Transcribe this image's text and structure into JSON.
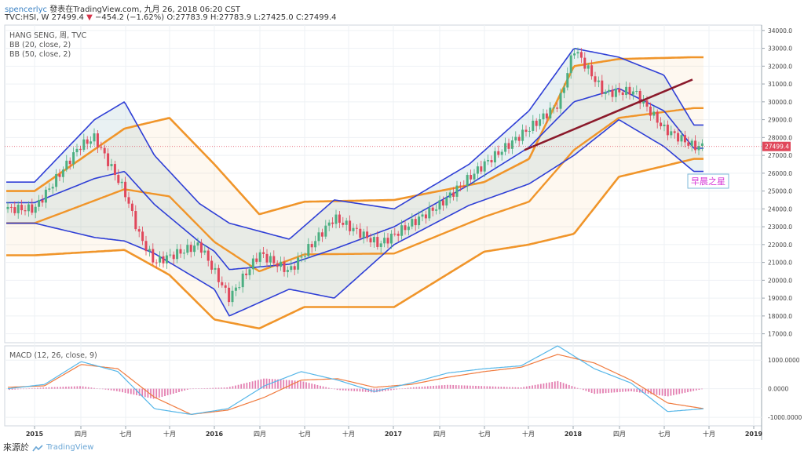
{
  "header": {
    "user": "spencerlyc",
    "published_text": "發表在TradingView.com, 九月 26, 2018 06:20 CST",
    "ticker": "TVC:HSI, W",
    "last": "27499.4",
    "change_arrow": "▼",
    "change": "−454.2 (−1.62%)",
    "ohlc": "O:27783.9 H:27783.9 L:27425.0 C:27499.4"
  },
  "legend": {
    "symbol_line": "HANG SENG, 周, TVC",
    "bb20": "BB (20, close, 2)",
    "bb50": "BB (50, close, 2)",
    "macd": "MACD (12, 26, close, 9)"
  },
  "annotation": {
    "label": "早晨之星",
    "color": "#d633d6"
  },
  "last_price_label": "27499.4",
  "footer": {
    "source": "來源於",
    "brand": "TradingView"
  },
  "colors": {
    "up": "#4caf82",
    "down": "#e0475b",
    "bb20": "#2f3fd6",
    "bb50": "#f0952a",
    "trend": "#8b1a2b",
    "macd": "#55b6e8",
    "signal": "#f07b3f",
    "hist": "#e37fb1"
  },
  "chart_data": {
    "type": "line",
    "title": "HANG SENG, 周, TVC",
    "price_axis": {
      "ylim": [
        16500,
        34300
      ],
      "ticks": [
        "34000.0",
        "33000.0",
        "32000.0",
        "31000.0",
        "30000.0",
        "29000.0",
        "28000.0",
        "27000.0",
        "26000.0",
        "25000.0",
        "24000.0",
        "23000.0",
        "22000.0",
        "21000.0",
        "20000.0",
        "19000.0",
        "18000.0",
        "17000.0"
      ]
    },
    "x_ticks": [
      "2015",
      "四月",
      "七月",
      "十月",
      "2016",
      "四月",
      "七月",
      "十月",
      "2017",
      "四月",
      "七月",
      "十月",
      "2018",
      "四月",
      "七月",
      "十月",
      "2019"
    ],
    "series": [
      {
        "name": "HANG SENG close",
        "x": [
          "2015-01",
          "2015-04",
          "2015-05",
          "2015-07",
          "2015-08",
          "2015-09",
          "2015-12",
          "2016-02",
          "2016-04",
          "2016-06",
          "2016-09",
          "2016-12",
          "2017-04",
          "2017-07",
          "2017-10",
          "2017-12",
          "2018-01",
          "2018-03",
          "2018-05",
          "2018-07",
          "2018-09"
        ],
        "values": [
          24000,
          27500,
          28000,
          25000,
          22500,
          21000,
          22000,
          19000,
          21500,
          20500,
          23500,
          22000,
          24200,
          26500,
          28500,
          29900,
          33000,
          30500,
          30600,
          28500,
          27499.4
        ]
      },
      {
        "name": "BB (20) upper",
        "x": [
          "2015-01",
          "2015-05",
          "2015-07",
          "2015-09",
          "2015-12",
          "2016-02",
          "2016-06",
          "2016-09",
          "2017-01",
          "2017-06",
          "2017-10",
          "2018-01",
          "2018-04",
          "2018-07",
          "2018-09"
        ],
        "values": [
          25500,
          29000,
          30000,
          27000,
          24300,
          23200,
          22300,
          24500,
          24000,
          26500,
          29500,
          33000,
          32500,
          31500,
          28700
        ]
      },
      {
        "name": "BB (20) lower",
        "x": [
          "2015-01",
          "2015-05",
          "2015-07",
          "2015-09",
          "2016-01",
          "2016-02",
          "2016-06",
          "2016-09",
          "2017-01",
          "2017-06",
          "2017-10",
          "2018-01",
          "2018-04",
          "2018-07",
          "2018-09"
        ],
        "values": [
          23200,
          22400,
          22200,
          21500,
          19500,
          18000,
          19500,
          19000,
          22000,
          24200,
          25400,
          27000,
          29000,
          27500,
          26100
        ]
      },
      {
        "name": "BB (50) upper",
        "x": [
          "2015-01",
          "2015-07",
          "2015-10",
          "2016-01",
          "2016-04",
          "2016-07",
          "2017-01",
          "2017-07",
          "2017-10",
          "2018-01",
          "2018-04",
          "2018-09"
        ],
        "values": [
          25000,
          28500,
          29100,
          26500,
          23700,
          24400,
          24500,
          25500,
          26800,
          32000,
          32400,
          32500
        ]
      },
      {
        "name": "BB (50) lower",
        "x": [
          "2015-01",
          "2015-07",
          "2015-10",
          "2016-01",
          "2016-04",
          "2016-07",
          "2017-01",
          "2017-07",
          "2017-10",
          "2018-01",
          "2018-04",
          "2018-09"
        ],
        "values": [
          21400,
          21700,
          20300,
          17800,
          17300,
          18500,
          18500,
          21600,
          22000,
          22600,
          25800,
          26800
        ]
      }
    ],
    "macd_axis": {
      "ylim": [
        -1300,
        1500
      ],
      "ticks": [
        "1000.0000",
        "0.0000",
        "-1000.0000"
      ]
    },
    "macd_series": [
      {
        "name": "MACD",
        "values": [
          0,
          150,
          950,
          600,
          -700,
          -900,
          -700,
          100,
          600,
          300,
          -100,
          200,
          550,
          700,
          800,
          1500,
          700,
          200,
          -800,
          -700
        ]
      },
      {
        "name": "Signal",
        "values": [
          50,
          100,
          850,
          700,
          -300,
          -900,
          -750,
          -300,
          300,
          350,
          50,
          150,
          400,
          600,
          750,
          1200,
          900,
          300,
          -500,
          -700
        ]
      }
    ],
    "grid": true,
    "legend_position": "top-left"
  }
}
